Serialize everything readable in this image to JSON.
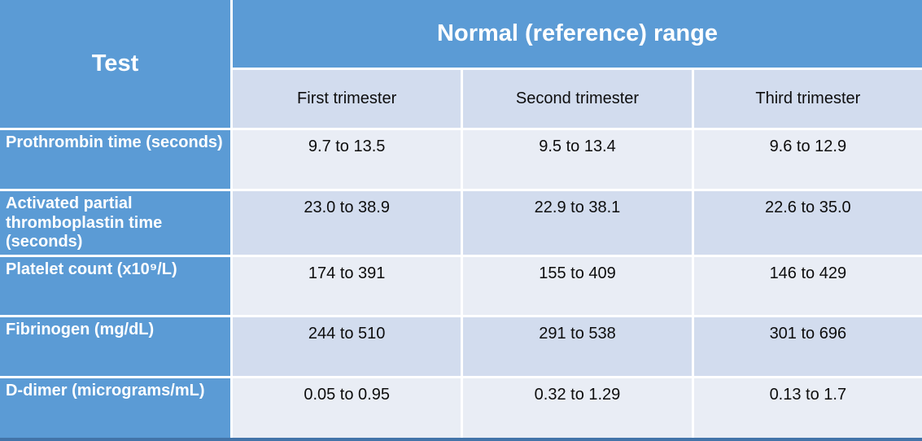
{
  "table": {
    "corner_header": "Test",
    "group_header": "Normal (reference) range",
    "sub_headers": [
      "First trimester",
      "Second trimester",
      "Third trimester"
    ],
    "rows": [
      {
        "label": "Prothrombin time (seconds)",
        "values": [
          "9.7 to 13.5",
          "9.5 to 13.4",
          "9.6 to 12.9"
        ]
      },
      {
        "label": "Activated partial thromboplastin time (seconds)",
        "values": [
          "23.0 to 38.9",
          "22.9 to 38.1",
          "22.6 to 35.0"
        ]
      },
      {
        "label": "Platelet count (x10⁹/L)",
        "values": [
          "174 to 391",
          "155 to 409",
          "146 to 429"
        ]
      },
      {
        "label": "Fibrinogen (mg/dL)",
        "values": [
          "244 to 510",
          "291 to 538",
          "301 to 696"
        ]
      },
      {
        "label": "D-dimer (micrograms/mL)",
        "values": [
          "0.05 to 0.95",
          "0.32 to 1.29",
          "0.13 to 1.7"
        ]
      }
    ],
    "colors": {
      "header_blue": "#5b9bd5",
      "band_light": "#e9edf5",
      "band_dark": "#d2dcee",
      "gridline": "#ffffff",
      "bottom_border": "#4374a9",
      "header_text": "#ffffff",
      "body_text": "#0d0d0d"
    }
  }
}
